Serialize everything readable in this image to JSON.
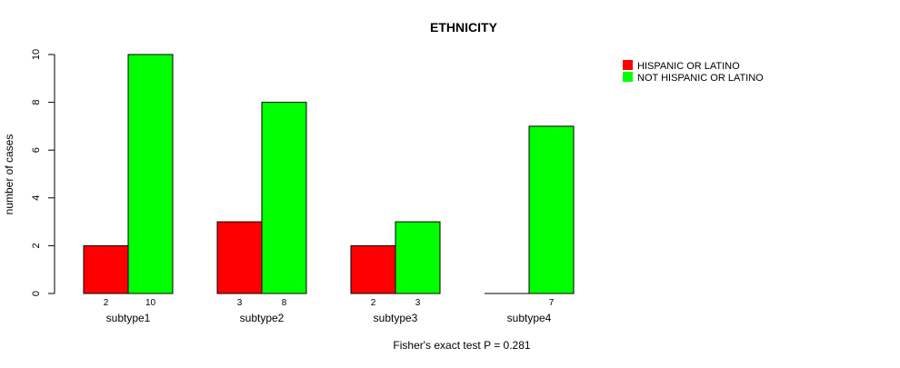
{
  "chart_data": {
    "type": "bar",
    "title": "ETHNICITY",
    "xlabel": "",
    "ylabel": "number of cases",
    "footnote": "Fisher's exact test P = 0.281",
    "categories": [
      "subtype1",
      "subtype2",
      "subtype3",
      "subtype4"
    ],
    "series": [
      {
        "name": "HISPANIC OR LATINO",
        "color": "#ff0000",
        "values": [
          2,
          3,
          2,
          0
        ],
        "labels": [
          "2",
          "3",
          "2",
          ""
        ]
      },
      {
        "name": "NOT HISPANIC OR LATINO",
        "color": "#00ff00",
        "values": [
          10,
          8,
          3,
          7
        ],
        "labels": [
          "10",
          "8",
          "3",
          "7"
        ]
      }
    ],
    "yticks": [
      0,
      2,
      4,
      6,
      8,
      10
    ],
    "ylim": [
      0,
      10
    ],
    "grid": false,
    "legend_position": "top-right"
  }
}
